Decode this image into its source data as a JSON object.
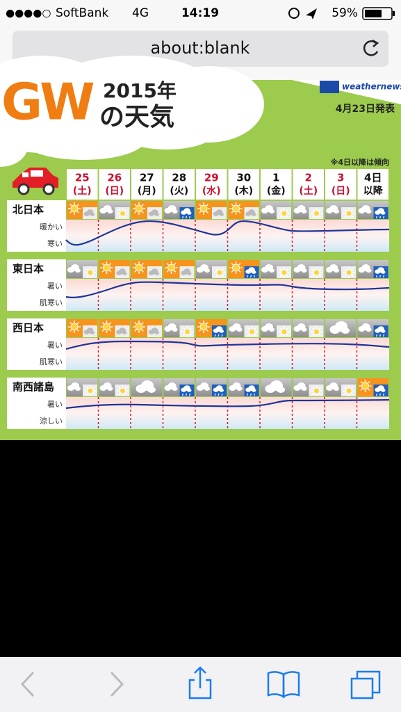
{
  "status": {
    "signal": "●●●●○",
    "carrier": "SoftBank",
    "network": "4G",
    "time": "14:19",
    "battery": "59%"
  },
  "address_bar": {
    "url": "about:blank"
  },
  "forecast": {
    "title_gw": "GW",
    "title_year": "2015年",
    "title_weather": "の天気",
    "brand": "weathernews",
    "issued": "4月23日発表",
    "note": "※4日以降は傾向",
    "days": [
      {
        "date": "25",
        "weekday": "(土)",
        "color": "#c8102e"
      },
      {
        "date": "26",
        "weekday": "(日)",
        "color": "#c8102e"
      },
      {
        "date": "27",
        "weekday": "(月)",
        "color": "#111"
      },
      {
        "date": "28",
        "weekday": "(火)",
        "color": "#111"
      },
      {
        "date": "29",
        "weekday": "(水)",
        "color": "#c8102e"
      },
      {
        "date": "30",
        "weekday": "(木)",
        "color": "#111"
      },
      {
        "date": "1",
        "weekday": "(金)",
        "color": "#111"
      },
      {
        "date": "2",
        "weekday": "(土)",
        "color": "#c8102e"
      },
      {
        "date": "3",
        "weekday": "(日)",
        "color": "#c8102e"
      },
      {
        "date": "4日",
        "weekday": "以降",
        "color": "#111"
      }
    ],
    "regions": [
      {
        "name": "北日本",
        "high_label": "暖かい",
        "low_label": "寒い"
      },
      {
        "name": "東日本",
        "high_label": "暑い",
        "low_label": "肌寒い"
      },
      {
        "name": "西日本",
        "high_label": "暑い",
        "low_label": "肌寒い"
      },
      {
        "name": "南西諸島",
        "high_label": "暑い",
        "low_label": "涼しい"
      }
    ]
  }
}
